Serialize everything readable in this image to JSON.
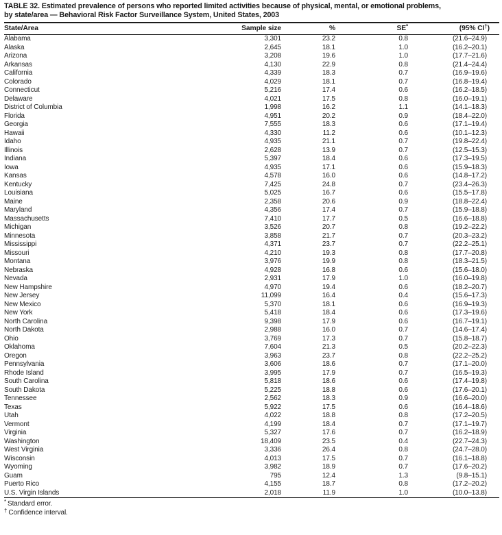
{
  "title": {
    "line1": "TABLE 32. Estimated prevalence of persons who reported limited activities because of physical, mental, or emotional problems,",
    "line2": "by state/area — Behavioral Risk Factor Surveillance System, United States, 2003"
  },
  "table": {
    "columns": [
      {
        "label": "State/Area"
      },
      {
        "label": "Sample size"
      },
      {
        "label": "%"
      },
      {
        "label": "SE",
        "sup": "*"
      },
      {
        "label": "(95% CI",
        "sup": "†",
        "suffix": ")"
      }
    ],
    "rows": [
      [
        "Alabama",
        "3,301",
        "23.2",
        "0.8",
        "(21.6–24.9)"
      ],
      [
        "Alaska",
        "2,645",
        "18.1",
        "1.0",
        "(16.2–20.1)"
      ],
      [
        "Arizona",
        "3,208",
        "19.6",
        "1.0",
        "(17.7–21.6)"
      ],
      [
        "Arkansas",
        "4,130",
        "22.9",
        "0.8",
        "(21.4–24.4)"
      ],
      [
        "California",
        "4,339",
        "18.3",
        "0.7",
        "(16.9–19.6)"
      ],
      [
        "Colorado",
        "4,029",
        "18.1",
        "0.7",
        "(16.8–19.4)"
      ],
      [
        "Connecticut",
        "5,216",
        "17.4",
        "0.6",
        "(16.2–18.5)"
      ],
      [
        "Delaware",
        "4,021",
        "17.5",
        "0.8",
        "(16.0–19.1)"
      ],
      [
        "District of Columbia",
        "1,998",
        "16.2",
        "1.1",
        "(14.1–18.3)"
      ],
      [
        "Florida",
        "4,951",
        "20.2",
        "0.9",
        "(18.4–22.0)"
      ],
      [
        "Georgia",
        "7,555",
        "18.3",
        "0.6",
        "(17.1–19.4)"
      ],
      [
        "Hawaii",
        "4,330",
        "11.2",
        "0.6",
        "(10.1–12.3)"
      ],
      [
        "Idaho",
        "4,935",
        "21.1",
        "0.7",
        "(19.8–22.4)"
      ],
      [
        "Illinois",
        "2,628",
        "13.9",
        "0.7",
        "(12.5–15.3)"
      ],
      [
        "Indiana",
        "5,397",
        "18.4",
        "0.6",
        "(17.3–19.5)"
      ],
      [
        "Iowa",
        "4,935",
        "17.1",
        "0.6",
        "(15.9–18.3)"
      ],
      [
        "Kansas",
        "4,578",
        "16.0",
        "0.6",
        "(14.8–17.2)"
      ],
      [
        "Kentucky",
        "7,425",
        "24.8",
        "0.7",
        "(23.4–26.3)"
      ],
      [
        "Louisiana",
        "5,025",
        "16.7",
        "0.6",
        "(15.5–17.8)"
      ],
      [
        "Maine",
        "2,358",
        "20.6",
        "0.9",
        "(18.8–22.4)"
      ],
      [
        "Maryland",
        "4,356",
        "17.4",
        "0.7",
        "(15.9–18.8)"
      ],
      [
        "Massachusetts",
        "7,410",
        "17.7",
        "0.5",
        "(16.6–18.8)"
      ],
      [
        "Michigan",
        "3,526",
        "20.7",
        "0.8",
        "(19.2–22.2)"
      ],
      [
        "Minnesota",
        "3,858",
        "21.7",
        "0.7",
        "(20.3–23.2)"
      ],
      [
        "Mississippi",
        "4,371",
        "23.7",
        "0.7",
        "(22.2–25.1)"
      ],
      [
        "Missouri",
        "4,210",
        "19.3",
        "0.8",
        "(17.7–20.8)"
      ],
      [
        "Montana",
        "3,976",
        "19.9",
        "0.8",
        "(18.3–21.5)"
      ],
      [
        "Nebraska",
        "4,928",
        "16.8",
        "0.6",
        "(15.6–18.0)"
      ],
      [
        "Nevada",
        "2,931",
        "17.9",
        "1.0",
        "(16.0–19.8)"
      ],
      [
        "New Hampshire",
        "4,970",
        "19.4",
        "0.6",
        "(18.2–20.7)"
      ],
      [
        "New Jersey",
        "11,099",
        "16.4",
        "0.4",
        "(15.6–17.3)"
      ],
      [
        "New Mexico",
        "5,370",
        "18.1",
        "0.6",
        "(16.9–19.3)"
      ],
      [
        "New York",
        "5,418",
        "18.4",
        "0.6",
        "(17.3–19.6)"
      ],
      [
        "North Carolina",
        "9,398",
        "17.9",
        "0.6",
        "(16.7–19.1)"
      ],
      [
        "North Dakota",
        "2,988",
        "16.0",
        "0.7",
        "(14.6–17.4)"
      ],
      [
        "Ohio",
        "3,769",
        "17.3",
        "0.7",
        "(15.8–18.7)"
      ],
      [
        "Oklahoma",
        "7,604",
        "21.3",
        "0.5",
        "(20.2–22.3)"
      ],
      [
        "Oregon",
        "3,963",
        "23.7",
        "0.8",
        "(22.2–25.2)"
      ],
      [
        "Pennsylvania",
        "3,606",
        "18.6",
        "0.7",
        "(17.1–20.0)"
      ],
      [
        "Rhode Island",
        "3,995",
        "17.9",
        "0.7",
        "(16.5–19.3)"
      ],
      [
        "South Carolina",
        "5,818",
        "18.6",
        "0.6",
        "(17.4–19.8)"
      ],
      [
        "South Dakota",
        "5,225",
        "18.8",
        "0.6",
        "(17.6–20.1)"
      ],
      [
        "Tennessee",
        "2,562",
        "18.3",
        "0.9",
        "(16.6–20.0)"
      ],
      [
        "Texas",
        "5,922",
        "17.5",
        "0.6",
        "(16.4–18.6)"
      ],
      [
        "Utah",
        "4,022",
        "18.8",
        "0.8",
        "(17.2–20.5)"
      ],
      [
        "Vermont",
        "4,199",
        "18.4",
        "0.7",
        "(17.1–19.7)"
      ],
      [
        "Virginia",
        "5,327",
        "17.6",
        "0.7",
        "(16.2–18.9)"
      ],
      [
        "Washington",
        "18,409",
        "23.5",
        "0.4",
        "(22.7–24.3)"
      ],
      [
        "West Virginia",
        "3,336",
        "26.4",
        "0.8",
        "(24.7–28.0)"
      ],
      [
        "Wisconsin",
        "4,013",
        "17.5",
        "0.7",
        "(16.1–18.8)"
      ],
      [
        "Wyoming",
        "3,982",
        "18.9",
        "0.7",
        "(17.6–20.2)"
      ],
      [
        "Guam",
        "795",
        "12.4",
        "1.3",
        "(9.8–15.1)"
      ],
      [
        "Puerto Rico",
        "4,155",
        "18.7",
        "0.8",
        "(17.2–20.2)"
      ],
      [
        "U.S. Virgin Islands",
        "2,018",
        "11.9",
        "1.0",
        "(10.0–13.8)"
      ]
    ]
  },
  "footnotes": [
    {
      "marker": "*",
      "text": "Standard error."
    },
    {
      "marker": "†",
      "text": "Confidence interval."
    }
  ]
}
